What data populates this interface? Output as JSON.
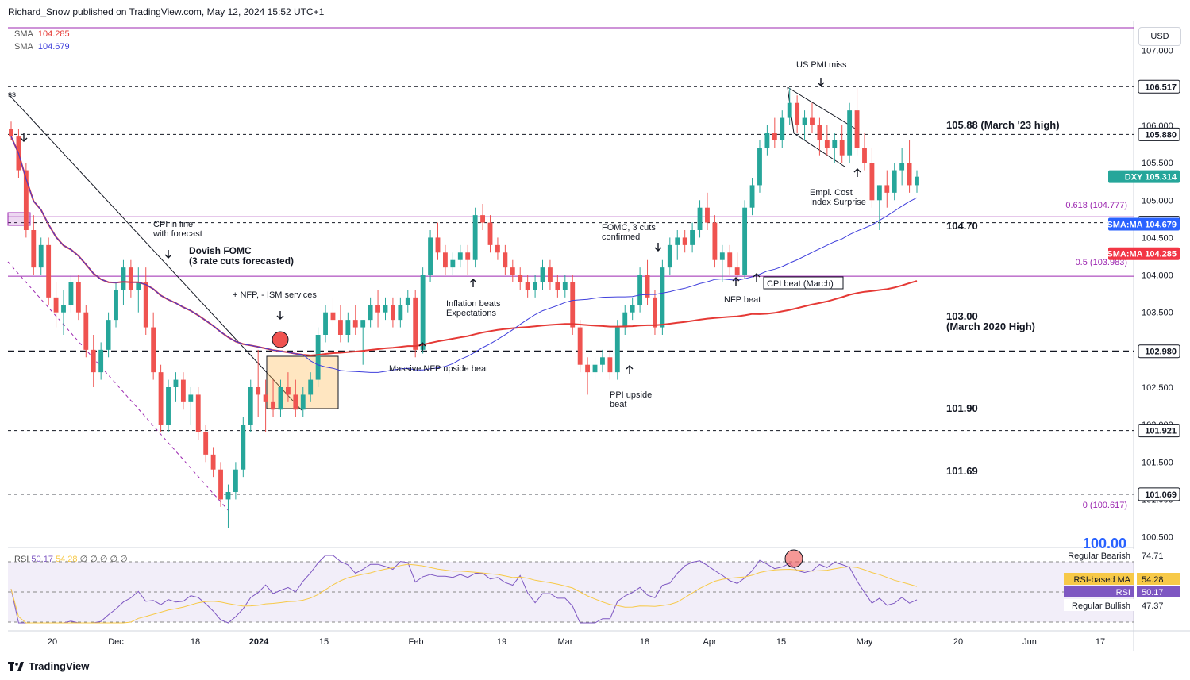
{
  "header": {
    "publisher": "Richard_Snow published on TradingView.com, May 12, 2024 15:52 UTC+1"
  },
  "currency": "USD",
  "legend": {
    "sma1": {
      "label": "SMA",
      "value": "104.285",
      "color": "#e53935"
    },
    "sma2": {
      "label": "SMA",
      "value": "104.679",
      "color": "#3f3fdc"
    }
  },
  "rsi_legend": {
    "label": "RSI",
    "rsi": "50.17",
    "ma": "54.28",
    "extra": "∅ ∅   ∅ ∅ ∅"
  },
  "footer": {
    "brand": "TradingView"
  },
  "price_scale": [
    "107.000",
    "106.500",
    "106.000",
    "105.500",
    "105.000",
    "104.500",
    "104.000",
    "103.500",
    "103.000",
    "102.500",
    "102.000",
    "101.500",
    "101.000",
    "100.500"
  ],
  "price_tags": [
    {
      "text": "106.517",
      "price": 106.517,
      "bg": "#ffffff",
      "fg": "#131722"
    },
    {
      "text": "105.880",
      "price": 105.88,
      "bg": "#ffffff",
      "fg": "#131722"
    },
    {
      "text": "DXY 105.314",
      "price": 105.314,
      "bg": "#26a69a",
      "fg": "#ffffff"
    },
    {
      "text": "104.699",
      "price": 104.699,
      "bg": "#ffffff",
      "fg": "#131722"
    },
    {
      "text": "SMA:MA 104.679",
      "price": 104.679,
      "bg": "#2962ff",
      "fg": "#ffffff"
    },
    {
      "text": "SMA:MA 104.285",
      "price": 104.285,
      "bg": "#f23645",
      "fg": "#ffffff"
    },
    {
      "text": "102.980",
      "price": 102.98,
      "bg": "#ffffff",
      "fg": "#131722"
    },
    {
      "text": "101.921",
      "price": 101.921,
      "bg": "#ffffff",
      "fg": "#131722"
    },
    {
      "text": "101.069",
      "price": 101.069,
      "bg": "#ffffff",
      "fg": "#131722"
    }
  ],
  "rsi_tags": [
    {
      "text": "Regular Bearish",
      "value": "74.71"
    },
    {
      "text": "RSI-based MA",
      "value": "54.28"
    },
    {
      "text": "RSI",
      "value": "50.17"
    },
    {
      "text": "Regular Bullish",
      "value": "47.37"
    }
  ],
  "time_labels": [
    "20",
    "Dec",
    "18",
    "2024",
    "15",
    "Feb",
    "19",
    "Mar",
    "18",
    "Apr",
    "15",
    "May",
    "20",
    "Jun",
    "17"
  ],
  "annotations": [
    "CPI in line\nwith forecast",
    "Dovish FOMC\n(3 rate cuts forecasted)",
    "+ NFP, - ISM services",
    "Massive NFP upside beat",
    "Inflation beats\nExpectations",
    "FOMC, 3 cuts\nconfirmed",
    "PPI upside\nbeat",
    "NFP beat",
    "CPI beat (March)",
    "US PMI miss",
    "Empl. Cost\nIndex Surprise",
    "105.88 (March '23 high)",
    "104.70",
    "103.00\n(March 2020 High)",
    "101.90",
    "101.69",
    "0.618 (104.777)",
    "0.5 (103.983)",
    "0 (100.617)",
    "100.00",
    "ss"
  ],
  "chart_data": {
    "type": "candlestick",
    "symbol": "DXY",
    "last": 105.314,
    "ylim": [
      100.4,
      107.4
    ],
    "levels": {
      "march23_high": 105.88,
      "level_104_70": 104.7,
      "march2020_high": 103.0,
      "level_101_90": 101.9,
      "level_101_69": 101.69,
      "fib_0618": 104.777,
      "fib_05": 103.983,
      "fib_0": 100.617,
      "top_dashed": 106.517
    },
    "candles": [
      [
        105.95,
        106.05,
        105.8,
        105.85
      ],
      [
        105.85,
        105.95,
        105.3,
        105.4
      ],
      [
        105.4,
        105.5,
        104.5,
        104.6
      ],
      [
        104.6,
        104.8,
        104.0,
        104.1
      ],
      [
        104.1,
        104.5,
        104.0,
        104.4
      ],
      [
        104.4,
        104.5,
        103.6,
        103.7
      ],
      [
        103.7,
        103.9,
        103.3,
        103.5
      ],
      [
        103.5,
        103.8,
        103.2,
        103.6
      ],
      [
        103.6,
        104.0,
        103.5,
        103.9
      ],
      [
        103.9,
        104.0,
        103.4,
        103.5
      ],
      [
        103.5,
        103.6,
        102.9,
        103.0
      ],
      [
        103.0,
        103.2,
        102.5,
        102.7
      ],
      [
        102.7,
        103.1,
        102.6,
        103.0
      ],
      [
        103.0,
        103.5,
        102.9,
        103.4
      ],
      [
        103.4,
        103.9,
        103.3,
        103.8
      ],
      [
        103.8,
        104.2,
        103.6,
        104.1
      ],
      [
        104.1,
        104.2,
        103.7,
        103.8
      ],
      [
        103.8,
        104.1,
        103.5,
        103.9
      ],
      [
        103.9,
        104.1,
        103.2,
        103.3
      ],
      [
        103.3,
        103.5,
        102.6,
        102.7
      ],
      [
        102.7,
        102.8,
        101.9,
        102.0
      ],
      [
        102.0,
        102.6,
        101.9,
        102.5
      ],
      [
        102.5,
        102.7,
        102.3,
        102.6
      ],
      [
        102.6,
        102.7,
        102.2,
        102.3
      ],
      [
        102.3,
        102.5,
        102.0,
        102.4
      ],
      [
        102.4,
        102.5,
        101.8,
        101.9
      ],
      [
        101.9,
        102.0,
        101.5,
        101.6
      ],
      [
        101.6,
        101.7,
        101.3,
        101.4
      ],
      [
        101.4,
        101.5,
        100.9,
        101.0
      ],
      [
        101.0,
        101.2,
        100.62,
        101.1
      ],
      [
        101.1,
        101.5,
        101.0,
        101.4
      ],
      [
        101.4,
        102.1,
        101.3,
        102.0
      ],
      [
        102.0,
        102.6,
        101.9,
        102.5
      ],
      [
        102.5,
        103.0,
        102.1,
        102.4
      ],
      [
        102.4,
        102.6,
        101.9,
        102.3
      ],
      [
        102.3,
        102.6,
        102.1,
        102.2
      ],
      [
        102.2,
        102.6,
        102.1,
        102.5
      ],
      [
        102.5,
        102.7,
        102.3,
        102.4
      ],
      [
        102.4,
        102.6,
        102.1,
        102.2
      ],
      [
        102.2,
        102.5,
        102.1,
        102.4
      ],
      [
        102.4,
        102.7,
        102.3,
        102.6
      ],
      [
        102.6,
        103.3,
        102.5,
        103.2
      ],
      [
        103.2,
        103.6,
        103.1,
        103.5
      ],
      [
        103.5,
        103.7,
        103.3,
        103.4
      ],
      [
        103.4,
        103.6,
        103.1,
        103.2
      ],
      [
        103.2,
        103.5,
        103.1,
        103.4
      ],
      [
        103.4,
        103.6,
        103.2,
        103.3
      ],
      [
        103.3,
        103.4,
        102.8,
        103.4
      ],
      [
        103.4,
        103.7,
        103.3,
        103.6
      ],
      [
        103.6,
        103.8,
        103.3,
        103.5
      ],
      [
        103.5,
        103.7,
        103.4,
        103.6
      ],
      [
        103.6,
        103.7,
        103.3,
        103.4
      ],
      [
        103.4,
        103.7,
        103.3,
        103.6
      ],
      [
        103.6,
        103.8,
        103.5,
        103.7
      ],
      [
        103.7,
        103.8,
        102.9,
        103.0
      ],
      [
        103.0,
        104.1,
        102.95,
        104.0
      ],
      [
        104.0,
        104.6,
        103.9,
        104.5
      ],
      [
        104.5,
        104.7,
        104.2,
        104.3
      ],
      [
        104.3,
        104.4,
        104.0,
        104.1
      ],
      [
        104.1,
        104.3,
        104.0,
        104.2
      ],
      [
        104.2,
        104.4,
        104.1,
        104.3
      ],
      [
        104.3,
        104.4,
        104.0,
        104.2
      ],
      [
        104.2,
        104.9,
        104.1,
        104.8
      ],
      [
        104.8,
        104.95,
        104.6,
        104.7
      ],
      [
        104.7,
        104.8,
        104.3,
        104.4
      ],
      [
        104.4,
        104.5,
        104.2,
        104.3
      ],
      [
        104.3,
        104.4,
        104.0,
        104.1
      ],
      [
        104.1,
        104.2,
        103.9,
        104.0
      ],
      [
        104.0,
        104.1,
        103.8,
        103.9
      ],
      [
        103.9,
        104.0,
        103.7,
        103.8
      ],
      [
        103.8,
        104.0,
        103.7,
        103.9
      ],
      [
        103.9,
        104.2,
        103.8,
        104.1
      ],
      [
        104.1,
        104.2,
        103.8,
        103.9
      ],
      [
        103.9,
        104.0,
        103.7,
        103.8
      ],
      [
        103.8,
        104.0,
        103.7,
        103.9
      ],
      [
        103.9,
        104.0,
        103.2,
        103.3
      ],
      [
        103.3,
        103.4,
        102.7,
        102.8
      ],
      [
        102.8,
        102.9,
        102.4,
        102.7
      ],
      [
        102.7,
        102.9,
        102.6,
        102.8
      ],
      [
        102.8,
        103.0,
        102.7,
        102.9
      ],
      [
        102.9,
        103.0,
        102.6,
        102.7
      ],
      [
        102.7,
        103.4,
        102.6,
        103.3
      ],
      [
        103.3,
        103.6,
        103.2,
        103.5
      ],
      [
        103.5,
        103.7,
        103.4,
        103.6
      ],
      [
        103.6,
        104.1,
        103.5,
        104.0
      ],
      [
        104.0,
        104.2,
        103.6,
        103.7
      ],
      [
        103.7,
        103.8,
        103.2,
        103.3
      ],
      [
        103.3,
        104.2,
        103.2,
        104.1
      ],
      [
        104.1,
        104.5,
        104.0,
        104.4
      ],
      [
        104.4,
        104.6,
        104.2,
        104.5
      ],
      [
        104.5,
        104.6,
        104.3,
        104.4
      ],
      [
        104.4,
        104.7,
        104.3,
        104.6
      ],
      [
        104.6,
        105.0,
        104.5,
        104.9
      ],
      [
        104.9,
        105.1,
        104.6,
        104.7
      ],
      [
        104.7,
        104.8,
        104.1,
        104.2
      ],
      [
        104.2,
        104.4,
        103.9,
        104.3
      ],
      [
        104.3,
        104.4,
        104.0,
        104.1
      ],
      [
        104.1,
        104.3,
        103.9,
        104.0
      ],
      [
        104.0,
        105.0,
        103.95,
        104.9
      ],
      [
        104.9,
        105.3,
        104.8,
        105.2
      ],
      [
        105.2,
        105.8,
        105.1,
        105.7
      ],
      [
        105.7,
        106.0,
        105.6,
        105.9
      ],
      [
        105.9,
        106.1,
        105.7,
        105.8
      ],
      [
        105.8,
        106.2,
        105.7,
        106.1
      ],
      [
        106.1,
        106.5,
        106.0,
        106.3
      ],
      [
        106.3,
        106.4,
        105.9,
        106.0
      ],
      [
        106.0,
        106.2,
        105.8,
        106.1
      ],
      [
        106.1,
        106.3,
        105.9,
        106.0
      ],
      [
        106.0,
        106.1,
        105.6,
        105.8
      ],
      [
        105.8,
        106.0,
        105.6,
        105.7
      ],
      [
        105.7,
        105.9,
        105.5,
        105.8
      ],
      [
        105.8,
        106.0,
        105.5,
        105.6
      ],
      [
        105.6,
        106.3,
        105.5,
        106.2
      ],
      [
        106.2,
        106.5,
        105.6,
        105.7
      ],
      [
        105.7,
        105.9,
        105.4,
        105.5
      ],
      [
        105.5,
        105.7,
        104.9,
        105.0
      ],
      [
        105.0,
        105.2,
        104.6,
        105.2
      ],
      [
        105.2,
        105.4,
        104.9,
        105.1
      ],
      [
        105.1,
        105.5,
        105.0,
        105.4
      ],
      [
        105.4,
        105.7,
        105.2,
        105.5
      ],
      [
        105.5,
        105.8,
        105.1,
        105.2
      ],
      [
        105.2,
        105.4,
        105.1,
        105.314
      ]
    ]
  }
}
